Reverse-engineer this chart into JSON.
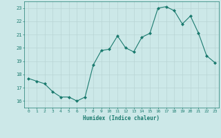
{
  "x": [
    0,
    1,
    2,
    3,
    4,
    5,
    6,
    7,
    8,
    9,
    10,
    11,
    12,
    13,
    14,
    15,
    16,
    17,
    18,
    19,
    20,
    21,
    22,
    23
  ],
  "y": [
    17.7,
    17.5,
    17.3,
    16.7,
    16.3,
    16.3,
    16.0,
    16.3,
    18.7,
    19.8,
    19.9,
    20.9,
    20.0,
    19.7,
    20.8,
    21.1,
    23.0,
    23.1,
    22.8,
    21.8,
    22.4,
    21.1,
    19.4,
    18.9
  ],
  "xlabel": "Humidex (Indice chaleur)",
  "ylim": [
    15.5,
    23.5
  ],
  "xlim": [
    -0.5,
    23.5
  ],
  "yticks": [
    16,
    17,
    18,
    19,
    20,
    21,
    22,
    23
  ],
  "xticks": [
    0,
    1,
    2,
    3,
    4,
    5,
    6,
    7,
    8,
    9,
    10,
    11,
    12,
    13,
    14,
    15,
    16,
    17,
    18,
    19,
    20,
    21,
    22,
    23
  ],
  "line_color": "#1a7a6e",
  "marker_color": "#1a7a6e",
  "bg_color": "#cce8e8",
  "grid_color": "#b8d4d4",
  "tick_color": "#1a7a6e",
  "label_color": "#1a7a6e"
}
